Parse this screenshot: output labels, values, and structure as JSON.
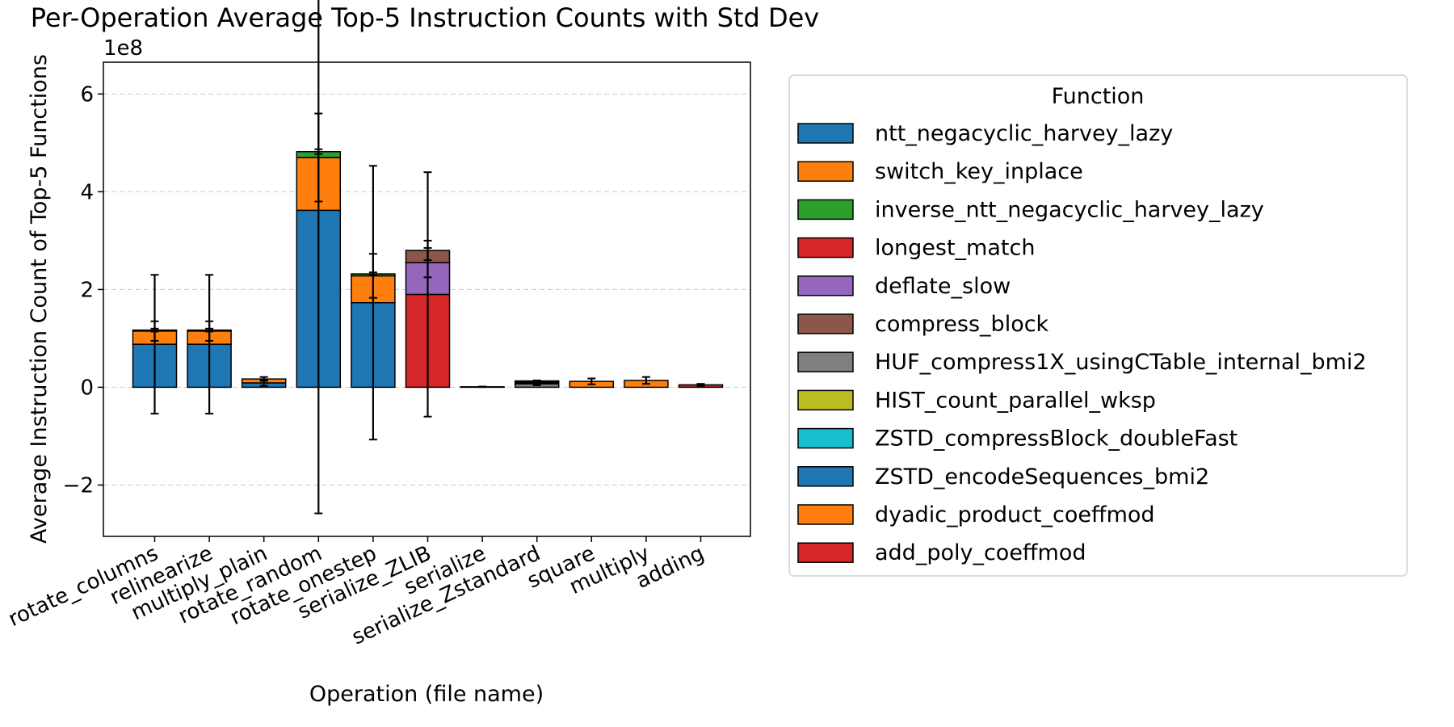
{
  "chart_data": {
    "type": "bar",
    "stacked": true,
    "title": "Per-Operation Average Top-5 Instruction Counts with Std Dev",
    "xlabel": "Operation (file name)",
    "ylabel": "Average Instruction Count of Top-5 Functions",
    "y_scale_label": "1e8",
    "y_unit_multiplier": 100000000,
    "ylim": [
      -3.05,
      6.65
    ],
    "yticks": [
      -2,
      0,
      2,
      4,
      6
    ],
    "ytick_labels": [
      "−2",
      "0",
      "2",
      "4",
      "6"
    ],
    "grid": "y dashed",
    "categories": [
      "rotate_columns",
      "relinearize",
      "multiply_plain",
      "rotate_random",
      "rotate_onestep",
      "serialize_ZLIB",
      "serialize",
      "serialize_Zstandard",
      "square",
      "multiply",
      "adding"
    ],
    "legend": {
      "title": "Function",
      "placement": "outside-right"
    },
    "series": [
      {
        "name": "ntt_negacyclic_harvey_lazy",
        "color": "#1f77b4",
        "values": [
          0.88,
          0.88,
          0.09,
          3.62,
          1.73,
          0,
          0,
          0,
          0,
          0,
          0
        ],
        "err": [
          1.42,
          1.42,
          0.06,
          6.2,
          2.8,
          0,
          0,
          0,
          0,
          0,
          0
        ]
      },
      {
        "name": "switch_key_inplace",
        "color": "#ff7f0e",
        "values": [
          0.27,
          0.27,
          0,
          1.08,
          0.55,
          0,
          0,
          0,
          0,
          0,
          0
        ],
        "err": [
          0.2,
          0.2,
          0,
          0.9,
          0.45,
          0,
          0,
          0,
          0,
          0,
          0
        ]
      },
      {
        "name": "inverse_ntt_negacyclic_harvey_lazy",
        "color": "#2ca02c",
        "values": [
          0.02,
          0.02,
          0,
          0.12,
          0.04,
          0,
          0,
          0,
          0,
          0,
          0
        ],
        "err": [
          0.03,
          0.03,
          0,
          0.05,
          0.03,
          0,
          0,
          0,
          0,
          0,
          0
        ]
      },
      {
        "name": "longest_match",
        "color": "#d62728",
        "values": [
          0,
          0,
          0,
          0,
          0,
          1.9,
          0,
          0,
          0,
          0,
          0
        ],
        "err": [
          0,
          0,
          0,
          0,
          0,
          2.5,
          0,
          0,
          0,
          0,
          0
        ]
      },
      {
        "name": "deflate_slow",
        "color": "#9467bd",
        "values": [
          0,
          0,
          0,
          0,
          0,
          0.65,
          0,
          0,
          0,
          0,
          0
        ],
        "err": [
          0,
          0,
          0,
          0,
          0,
          0.3,
          0,
          0,
          0,
          0,
          0
        ]
      },
      {
        "name": "compress_block",
        "color": "#8c564b",
        "values": [
          0,
          0,
          0,
          0,
          0,
          0.25,
          0,
          0,
          0,
          0,
          0
        ],
        "err": [
          0,
          0,
          0,
          0,
          0,
          0.2,
          0,
          0,
          0,
          0,
          0
        ]
      },
      {
        "name": "HUF_compress1X_usingCTable_internal_bmi2",
        "color": "#7f7f7f",
        "values": [
          0,
          0,
          0,
          0,
          0,
          0,
          0.01,
          0.07,
          0,
          0,
          0
        ],
        "err": [
          0,
          0,
          0,
          0,
          0,
          0,
          0.005,
          0.03,
          0,
          0,
          0
        ]
      },
      {
        "name": "HIST_count_parallel_wksp",
        "color": "#bcbd22",
        "values": [
          0,
          0,
          0,
          0,
          0,
          0,
          0,
          0.02,
          0,
          0,
          0
        ],
        "err": [
          0,
          0,
          0,
          0,
          0,
          0,
          0,
          0.01,
          0,
          0,
          0
        ]
      },
      {
        "name": "ZSTD_compressBlock_doubleFast",
        "color": "#17becf",
        "values": [
          0,
          0,
          0,
          0,
          0,
          0,
          0,
          0.02,
          0,
          0,
          0
        ],
        "err": [
          0,
          0,
          0,
          0,
          0,
          0,
          0,
          0.01,
          0,
          0,
          0
        ]
      },
      {
        "name": "ZSTD_encodeSequences_bmi2",
        "color": "#1f77b4",
        "values": [
          0,
          0,
          0,
          0,
          0,
          0,
          0,
          0.02,
          0,
          0,
          0
        ],
        "err": [
          0,
          0,
          0,
          0,
          0,
          0,
          0,
          0.01,
          0,
          0,
          0
        ]
      },
      {
        "name": "dyadic_product_coeffmod",
        "color": "#ff7f0e",
        "values": [
          0,
          0,
          0.08,
          0,
          0,
          0,
          0,
          0,
          0.12,
          0.14,
          0
        ],
        "err": [
          0,
          0,
          0.04,
          0,
          0,
          0,
          0,
          0,
          0.06,
          0.07,
          0
        ]
      },
      {
        "name": "add_poly_coeffmod",
        "color": "#d62728",
        "values": [
          0,
          0,
          0,
          0,
          0,
          0,
          0,
          0,
          0,
          0,
          0.05
        ],
        "err": [
          0,
          0,
          0,
          0,
          0,
          0,
          0,
          0,
          0,
          0,
          0.02
        ]
      }
    ]
  }
}
